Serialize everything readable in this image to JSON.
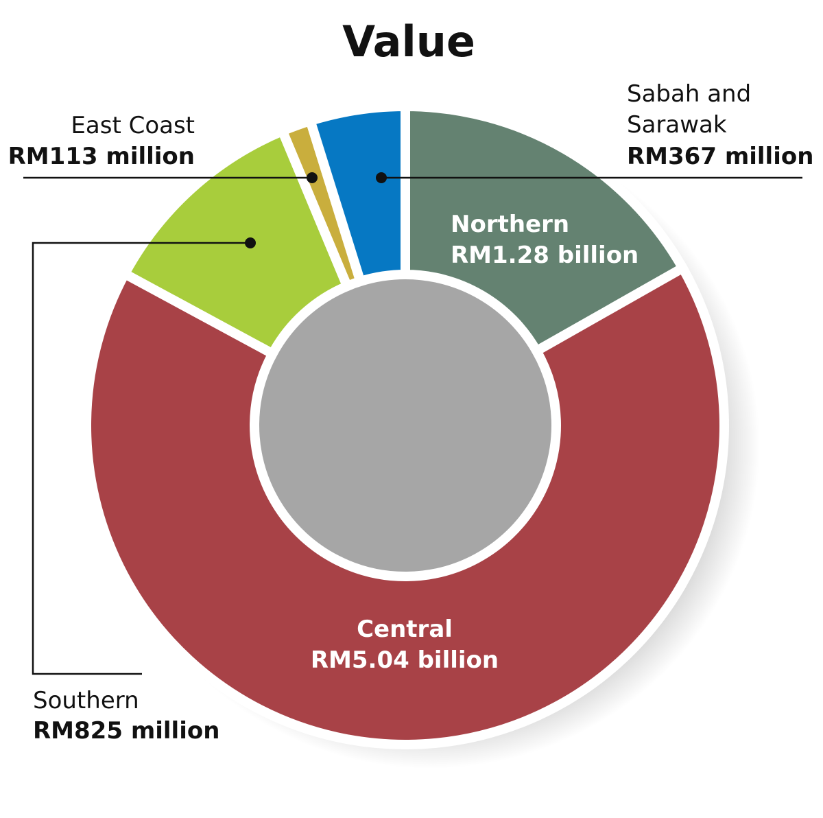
{
  "chart_data": {
    "type": "pie",
    "title": "Value",
    "series": [
      {
        "category": "Northern",
        "label": "RM1.28 billion",
        "value": 1.28,
        "color": "#648271"
      },
      {
        "category": "Central",
        "label": "RM5.04 billion",
        "value": 5.04,
        "color": "#A84247"
      },
      {
        "category": "Southern",
        "label": "RM825 million",
        "value": 0.825,
        "color": "#A8CD3C"
      },
      {
        "category": "East Coast",
        "label": "RM113 million",
        "value": 0.113,
        "color": "#C9AE3D"
      },
      {
        "category": "Sabah and Sarawak",
        "label": "RM367 million",
        "value": 0.367,
        "color": "#0678C3"
      }
    ]
  }
}
